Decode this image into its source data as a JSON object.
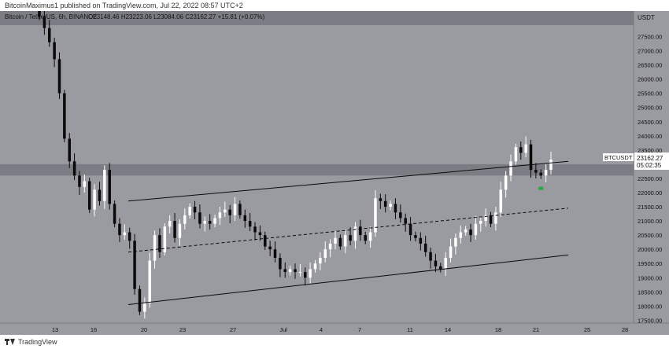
{
  "header": {
    "published": "BitcoinMaximus1 published on TradingView.com, Jul 22, 2022 08:57 UTC+2"
  },
  "legend": {
    "symbol": "Bitcoin / TetherUS, 6h, BINANCE",
    "ohlc": "O23148.46  H23223.06  L23084.06  C23162.27  +15.81 (+0.07%)"
  },
  "price_tag": {
    "symbol": "BTCUSDT",
    "price": "23162.27",
    "countdown": "05:02:35"
  },
  "footer": {
    "logo_text": "TradingView"
  },
  "colors": {
    "background": "#9a9ba1",
    "up": "#ffffff",
    "down": "#0a0a0a",
    "zone": "#7c7d84",
    "line": "#0a0a0a",
    "marker": "#22aa44"
  },
  "chart_data": {
    "type": "candlestick",
    "y_axis_unit": "USDT",
    "ylim": [
      17400,
      28400
    ],
    "y_ticks": [
      "27500.00",
      "27000.00",
      "26500.00",
      "26000.00",
      "25500.00",
      "25000.00",
      "24500.00",
      "24000.00",
      "23500.00",
      "23000.00",
      "22500.00",
      "22000.00",
      "21500.00",
      "21000.00",
      "20500.00",
      "20000.00",
      "19500.00",
      "19000.00",
      "18500.00",
      "18000.00",
      "17500.00"
    ],
    "x_ticks": [
      "13",
      "16",
      "20",
      "23",
      "27",
      "Jul",
      "4",
      "7",
      "11",
      "14",
      "18",
      "21",
      "25",
      "28"
    ],
    "resistance_zone": [
      22600,
      23000
    ],
    "top_zone": [
      27900,
      28400
    ],
    "channel": {
      "upper": {
        "from": {
          "date": "Jun 19",
          "price": 21700
        },
        "to": {
          "date": "Jul 22",
          "price": 23100
        }
      },
      "middle": {
        "from": {
          "date": "Jun 19",
          "price": 19900
        },
        "to": {
          "date": "Jul 22",
          "price": 21450
        }
      },
      "lower": {
        "from": {
          "date": "Jun 19",
          "price": 18050
        },
        "to": {
          "date": "Jul 22",
          "price": 19800
        }
      }
    },
    "series": [
      {
        "c": [
          28200,
          27800,
          27300,
          26700,
          25500,
          23900,
          23100,
          22600,
          22200,
          22400,
          21400,
          22100,
          21700,
          22800,
          21600,
          20900,
          20500,
          20600,
          20300,
          18600,
          17800,
          18100,
          19600,
          20500,
          19900,
          20800,
          21000,
          20400,
          20900,
          21200,
          21500,
          21300,
          20900,
          21000,
          20900,
          21100,
          21300,
          21400,
          21200,
          21600,
          21200,
          21000,
          20800,
          20600,
          20500,
          20100,
          20000,
          19700,
          19300,
          19200,
          19300,
          19200,
          19200,
          19000,
          19300,
          19500,
          19700,
          20000,
          20200,
          20400,
          20100,
          20500,
          20300,
          20800,
          20500,
          20300,
          20600,
          21800,
          21700,
          21500,
          21600,
          21300,
          21100,
          20900,
          20500,
          20400,
          20200,
          19900,
          19600,
          19400,
          19300,
          19700,
          20100,
          20400,
          20600,
          20700,
          20500,
          20900,
          21000,
          21200,
          20900,
          21300,
          22100,
          22600,
          23100,
          23600,
          23400,
          23700,
          22800,
          22700,
          22600,
          22800,
          23162
        ]
      }
    ],
    "current_price": 23162.27
  }
}
